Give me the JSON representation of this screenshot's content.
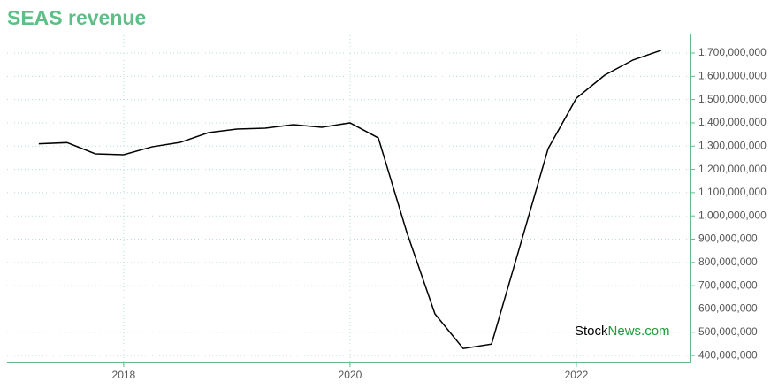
{
  "chart_data": {
    "type": "line",
    "title": "SEAS revenue",
    "x": [
      2017.25,
      2017.5,
      2017.75,
      2018.0,
      2018.25,
      2018.5,
      2018.75,
      2019.0,
      2019.25,
      2019.5,
      2019.75,
      2020.0,
      2020.25,
      2020.5,
      2020.75,
      2021.0,
      2021.25,
      2021.5,
      2021.75,
      2022.0,
      2022.25,
      2022.5,
      2022.75
    ],
    "series": [
      {
        "color": "#000000",
        "values": [
          1310000000,
          1315000000,
          1267000000,
          1263000000,
          1297000000,
          1316000000,
          1358000000,
          1373000000,
          1377000000,
          1392000000,
          1381000000,
          1400000000,
          1335000000,
          932000000,
          579000000,
          430000000,
          449000000,
          868000000,
          1289000000,
          1506000000,
          1605000000,
          1670000000,
          1712000000
        ]
      }
    ],
    "xlim": [
      2016.97,
      2023.0
    ],
    "xticks": [
      2018,
      2020,
      2022
    ],
    "ylim": [
      370000000,
      1776000000
    ],
    "yticks": [
      {
        "value": 400000000,
        "label": "400,000,000"
      },
      {
        "value": 500000000,
        "label": "500,000,000"
      },
      {
        "value": 600000000,
        "label": "600,000,000"
      },
      {
        "value": 700000000,
        "label": "700,000,000"
      },
      {
        "value": 800000000,
        "label": "800,000,000"
      },
      {
        "value": 900000000,
        "label": "900,000,000"
      },
      {
        "value": 1000000000,
        "label": "1,000,000,000"
      },
      {
        "value": 1100000000,
        "label": "1,100,000,000"
      },
      {
        "value": 1200000000,
        "label": "1,200,000,000"
      },
      {
        "value": 1300000000,
        "label": "1,300,000,000"
      },
      {
        "value": 1400000000,
        "label": "1,400,000,000"
      },
      {
        "value": 1500000000,
        "label": "1,500,000,000"
      },
      {
        "value": 1600000000,
        "label": "1,600,000,000"
      },
      {
        "value": 1700000000,
        "label": "1,700,000,000"
      }
    ],
    "grid": true,
    "watermark": [
      "Stock",
      "News.com"
    ]
  }
}
